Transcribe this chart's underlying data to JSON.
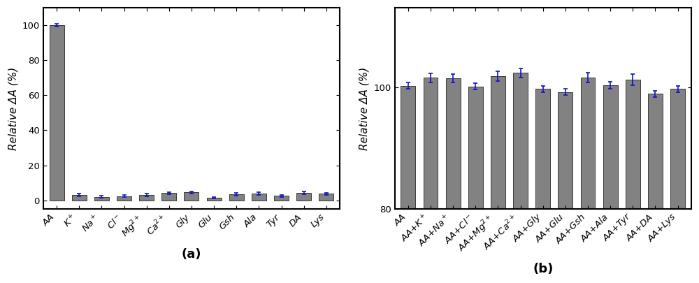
{
  "a_categories": [
    "AA",
    "K$^+$",
    "Na$^+$",
    "Cl$^-$",
    "Mg$^{2+}$",
    "Ca$^{2+}$",
    "Gly",
    "Glu",
    "Gsh",
    "Ala",
    "Tyr",
    "DA",
    "Lys"
  ],
  "a_values": [
    100,
    3.0,
    2.0,
    2.3,
    3.0,
    4.2,
    4.5,
    1.5,
    3.5,
    3.8,
    2.5,
    4.2,
    3.8
  ],
  "a_errors": [
    0.8,
    0.7,
    0.5,
    0.6,
    0.7,
    0.6,
    0.6,
    0.5,
    0.7,
    0.7,
    0.6,
    0.7,
    0.6
  ],
  "a_ylabel": "Relative ΔA (%)",
  "a_xlabel": "(a)",
  "a_ylim": [
    -5,
    110
  ],
  "a_yticks": [
    0,
    20,
    40,
    60,
    80,
    100
  ],
  "b_categories": [
    "AA",
    "AA+K$^+$",
    "AA+Na$^+$",
    "AA+Cl$^-$",
    "AA+Mg$^{2+}$",
    "AA+Ca$^{2+}$",
    "AA+Gly",
    "AA+Glu",
    "AA+Gsh",
    "AA+Ala",
    "AA+Tyr",
    "AA+DA",
    "AA+Lys"
  ],
  "b_values": [
    100.2,
    101.5,
    101.4,
    100.1,
    101.8,
    102.3,
    99.7,
    99.2,
    101.5,
    100.3,
    101.2,
    98.9,
    99.7
  ],
  "b_errors": [
    0.5,
    0.7,
    0.7,
    0.5,
    0.8,
    0.8,
    0.5,
    0.5,
    0.8,
    0.6,
    0.9,
    0.5,
    0.5
  ],
  "b_ylabel": "Relative ΔA (%)",
  "b_xlabel": "(b)",
  "b_ylim": [
    80,
    113
  ],
  "b_yticks": [
    80,
    100
  ],
  "bar_color": "#828282",
  "error_color": "#1111cc",
  "bar_edgecolor": "#3a3a3a",
  "bar_linewidth": 0.7,
  "tick_fontsize": 9.5,
  "label_fontsize": 11,
  "xlabel_fontsize": 13
}
